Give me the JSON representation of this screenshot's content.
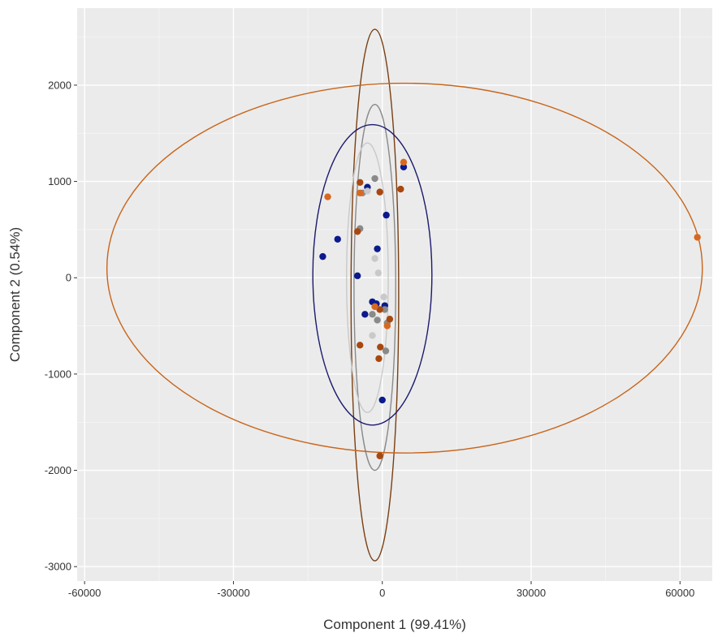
{
  "chart_data": {
    "type": "scatter",
    "title": "",
    "xlabel": "Component 1 (99.41%)",
    "ylabel": "Component 2 (0.54%)",
    "xlim": [
      -61500,
      66500
    ],
    "ylim": [
      -3150,
      2800
    ],
    "x_ticks": [
      -60000,
      -30000,
      0,
      30000,
      60000
    ],
    "x_tick_labels": [
      "-60000",
      "-30000",
      "0",
      "30000",
      "60000"
    ],
    "y_ticks": [
      -3000,
      -2000,
      -1000,
      0,
      1000,
      2000
    ],
    "y_tick_labels": [
      "-3000",
      "-2000",
      "-1000",
      "0",
      "1000",
      "2000"
    ],
    "grid": true,
    "legend": "none",
    "colors": {
      "panel_bg": "#ebebeb",
      "grid_major": "#ffffff",
      "grid_minor": "#f5f5f5",
      "navy": "#0b1a8c",
      "dark_grey": "#8a8a8a",
      "light_grey": "#c9c9c9",
      "brown": "#a8480f",
      "orange": "#d9681f"
    },
    "ellipses": [
      {
        "group": "brown",
        "cx": -1500,
        "cy": -180,
        "rx": 4800,
        "ry": 2760,
        "color": "#7a3f12"
      },
      {
        "group": "dark_grey",
        "cx": -1500,
        "cy": -100,
        "rx": 4200,
        "ry": 1900,
        "color": "#8a8a8a"
      },
      {
        "group": "navy",
        "cx": -2000,
        "cy": 30,
        "rx": 12000,
        "ry": 1560,
        "color": "#1a1a6e"
      },
      {
        "group": "light_grey",
        "cx": -3000,
        "cy": 0,
        "rx": 4200,
        "ry": 1400,
        "color": "#c9c9c9"
      },
      {
        "group": "orange",
        "cx": 4500,
        "cy": 100,
        "rx": 60000,
        "ry": 1920,
        "color": "#c8651b"
      }
    ],
    "series": [
      {
        "group": "navy",
        "color": "#0b1a8c",
        "points": [
          {
            "x": -12000,
            "y": 220
          },
          {
            "x": -9000,
            "y": 400
          },
          {
            "x": -5000,
            "y": 20
          },
          {
            "x": -3000,
            "y": 940
          },
          {
            "x": -1000,
            "y": 300
          },
          {
            "x": 800,
            "y": 650
          },
          {
            "x": -2000,
            "y": -250
          },
          {
            "x": -1200,
            "y": -270
          },
          {
            "x": 500,
            "y": -290
          },
          {
            "x": -3500,
            "y": -380
          },
          {
            "x": 0,
            "y": -1270
          },
          {
            "x": 4300,
            "y": 1150
          }
        ]
      },
      {
        "group": "dark_grey",
        "color": "#8a8a8a",
        "points": [
          {
            "x": -1500,
            "y": 1030
          },
          {
            "x": -4500,
            "y": 510
          },
          {
            "x": -1000,
            "y": -440
          },
          {
            "x": 500,
            "y": -330
          },
          {
            "x": 1000,
            "y": -470
          },
          {
            "x": 700,
            "y": -760
          },
          {
            "x": -2000,
            "y": -380
          },
          {
            "x": -4000,
            "y": 880
          }
        ]
      },
      {
        "group": "light_grey",
        "color": "#c9c9c9",
        "points": [
          {
            "x": -1500,
            "y": 200
          },
          {
            "x": -800,
            "y": 50
          },
          {
            "x": -2000,
            "y": -600
          },
          {
            "x": -3000,
            "y": 900
          },
          {
            "x": 300,
            "y": -200
          }
        ]
      },
      {
        "group": "brown",
        "color": "#a8480f",
        "points": [
          {
            "x": -4500,
            "y": 990
          },
          {
            "x": -500,
            "y": 890
          },
          {
            "x": 3700,
            "y": 920
          },
          {
            "x": -5000,
            "y": 480
          },
          {
            "x": 1500,
            "y": -430
          },
          {
            "x": -4500,
            "y": -700
          },
          {
            "x": -400,
            "y": -720
          },
          {
            "x": -700,
            "y": -840
          },
          {
            "x": -500,
            "y": -1850
          },
          {
            "x": -500,
            "y": -330
          }
        ]
      },
      {
        "group": "orange",
        "color": "#d9681f",
        "points": [
          {
            "x": -11000,
            "y": 840
          },
          {
            "x": -4500,
            "y": 880
          },
          {
            "x": 4300,
            "y": 1200
          },
          {
            "x": -1500,
            "y": -300
          },
          {
            "x": 1000,
            "y": -500
          },
          {
            "x": 63500,
            "y": 420
          }
        ]
      }
    ]
  }
}
